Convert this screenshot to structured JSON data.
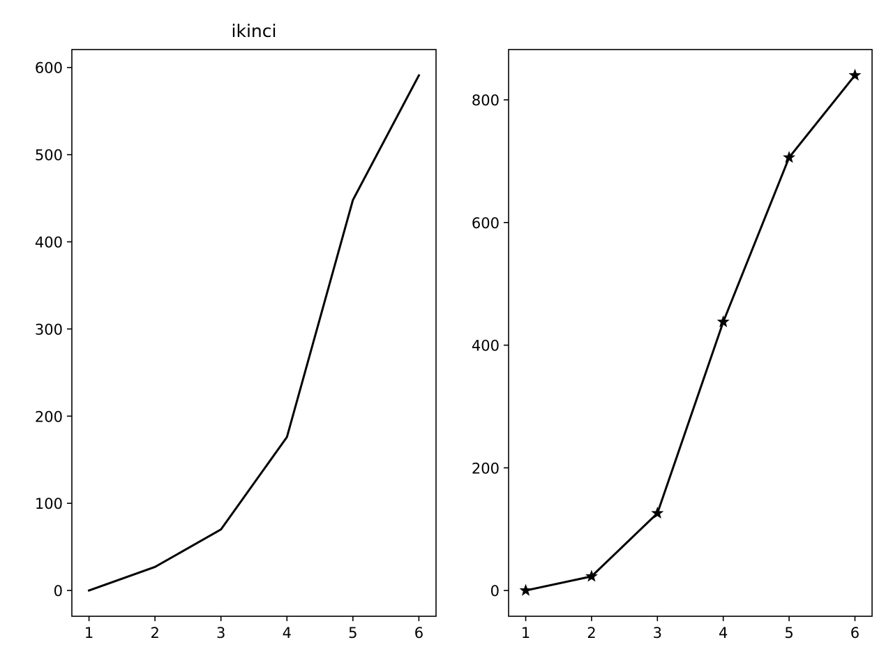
{
  "chart_data": [
    {
      "type": "line",
      "title": "ikinci",
      "xlabel": "",
      "ylabel": "",
      "x": [
        1,
        2,
        3,
        4,
        5,
        6
      ],
      "series": [
        {
          "values": [
            0,
            27,
            70,
            176,
            448,
            591
          ],
          "color": "#000000",
          "marker": "none"
        }
      ],
      "xlim": [
        0.74,
        6.26
      ],
      "ylim": [
        -29.6,
        620.6
      ],
      "xticks": [
        1,
        2,
        3,
        4,
        5,
        6
      ],
      "yticks": [
        0,
        100,
        200,
        300,
        400,
        500,
        600
      ],
      "grid": false,
      "legend": "none"
    },
    {
      "type": "line",
      "title": "",
      "xlabel": "",
      "ylabel": "",
      "x": [
        1,
        2,
        3,
        4,
        5,
        6
      ],
      "series": [
        {
          "values": [
            0,
            23,
            126,
            438,
            706,
            840
          ],
          "color": "#000000",
          "marker": "star"
        }
      ],
      "xlim": [
        0.74,
        6.26
      ],
      "ylim": [
        -42,
        882
      ],
      "xticks": [
        1,
        2,
        3,
        4,
        5,
        6
      ],
      "yticks": [
        0,
        200,
        400,
        600,
        800
      ],
      "grid": false,
      "legend": "none"
    }
  ]
}
